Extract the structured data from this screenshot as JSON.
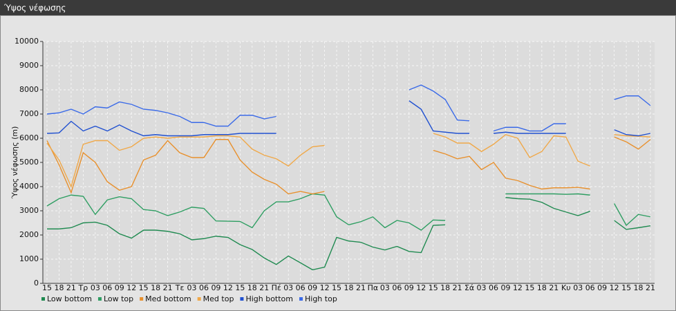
{
  "chart_data": {
    "type": "line",
    "title": "Ύψος νέφωσης",
    "y_label": "Ύψος νέφωσης (m)",
    "categories": [
      "15",
      "18",
      "21",
      "Τρ",
      "03",
      "06",
      "09",
      "12",
      "15",
      "18",
      "21",
      "Τε",
      "03",
      "06",
      "09",
      "12",
      "15",
      "18",
      "21",
      "Πέ",
      "03",
      "06",
      "09",
      "12",
      "15",
      "18",
      "21",
      "Πα",
      "03",
      "06",
      "09",
      "12",
      "15",
      "18",
      "21",
      "Σά",
      "03",
      "06",
      "09",
      "12",
      "15",
      "18",
      "21",
      "Κυ",
      "03",
      "06",
      "09",
      "12",
      "15",
      "18",
      "21"
    ],
    "ylim": [
      0,
      10000
    ],
    "yticks": [
      0,
      1000,
      2000,
      3000,
      4000,
      5000,
      6000,
      7000,
      8000,
      9000,
      10000
    ],
    "grid": true,
    "legend": "bottom",
    "series": [
      {
        "name": "Low bottom",
        "color": "#1f8a50",
        "values": [
          2250,
          2250,
          2300,
          2500,
          2530,
          2400,
          2050,
          1870,
          2200,
          2200,
          2150,
          2050,
          1800,
          1850,
          1950,
          1900,
          1600,
          1400,
          1050,
          780,
          1130,
          850,
          560,
          670,
          1900,
          1750,
          1700,
          1500,
          1380,
          1530,
          1320,
          1270,
          2400,
          2420,
          null,
          null,
          null,
          null,
          3550,
          3500,
          3480,
          3350,
          3100,
          2950,
          2800,
          2980,
          null,
          2600,
          2230,
          2300,
          2380
        ]
      },
      {
        "name": "Low top",
        "color": "#2e9e62",
        "values": [
          3200,
          3500,
          3650,
          3600,
          2850,
          3450,
          3580,
          3500,
          3050,
          3000,
          2800,
          2950,
          3150,
          3100,
          2580,
          2570,
          2560,
          2300,
          3000,
          3370,
          3370,
          3500,
          3700,
          3650,
          2750,
          2420,
          2550,
          2750,
          2300,
          2600,
          2500,
          2200,
          2620,
          2600,
          null,
          null,
          null,
          null,
          3700,
          3700,
          3700,
          3700,
          3700,
          3680,
          3700,
          3650,
          null,
          3300,
          2400,
          2850,
          2750
        ]
      },
      {
        "name": "Med bottom",
        "color": "#e8902c",
        "values": [
          5900,
          4900,
          3750,
          5400,
          5000,
          4200,
          3850,
          4000,
          5100,
          5300,
          5900,
          5400,
          5200,
          5200,
          5950,
          5950,
          5100,
          4600,
          4300,
          4100,
          3700,
          3800,
          3700,
          3800,
          null,
          null,
          null,
          null,
          null,
          null,
          null,
          null,
          5500,
          5350,
          5150,
          5250,
          4700,
          5000,
          4350,
          4250,
          4050,
          3900,
          3950,
          3950,
          3970,
          3900,
          null,
          6050,
          5850,
          5550,
          5950
        ]
      },
      {
        "name": "Med top",
        "color": "#f0a848",
        "values": [
          5800,
          5100,
          4000,
          5750,
          5900,
          5900,
          5500,
          5650,
          6000,
          6050,
          6000,
          6050,
          6050,
          6050,
          6100,
          6100,
          6050,
          5550,
          5300,
          5150,
          4850,
          5300,
          5650,
          5700,
          null,
          null,
          null,
          null,
          null,
          null,
          null,
          null,
          6200,
          6050,
          5800,
          5800,
          5450,
          5750,
          6150,
          6000,
          5200,
          5450,
          6100,
          6050,
          5050,
          4850,
          null,
          6150,
          6100,
          6080,
          6050
        ]
      },
      {
        "name": "High bottom",
        "color": "#2050d0",
        "values": [
          6200,
          6220,
          6700,
          6300,
          6500,
          6300,
          6550,
          6300,
          6100,
          6150,
          6100,
          6100,
          6100,
          6150,
          6150,
          6150,
          6200,
          6200,
          6200,
          6200,
          null,
          null,
          null,
          null,
          null,
          null,
          null,
          null,
          null,
          null,
          7550,
          7200,
          6300,
          6250,
          6200,
          6200,
          null,
          6200,
          6250,
          6200,
          6200,
          6200,
          6200,
          6200,
          null,
          null,
          null,
          6350,
          6150,
          6100,
          6200
        ]
      },
      {
        "name": "High top",
        "color": "#3a6ae8",
        "values": [
          7000,
          7050,
          7200,
          7000,
          7300,
          7250,
          7500,
          7400,
          7200,
          7150,
          7050,
          6900,
          6650,
          6650,
          6500,
          6500,
          6950,
          6950,
          6800,
          6900,
          null,
          null,
          null,
          null,
          null,
          null,
          null,
          null,
          null,
          null,
          8000,
          8200,
          7950,
          7600,
          6750,
          6720,
          null,
          6300,
          6450,
          6450,
          6300,
          6300,
          6600,
          6600,
          null,
          null,
          null,
          7600,
          7750,
          7750,
          7350
        ]
      }
    ]
  }
}
